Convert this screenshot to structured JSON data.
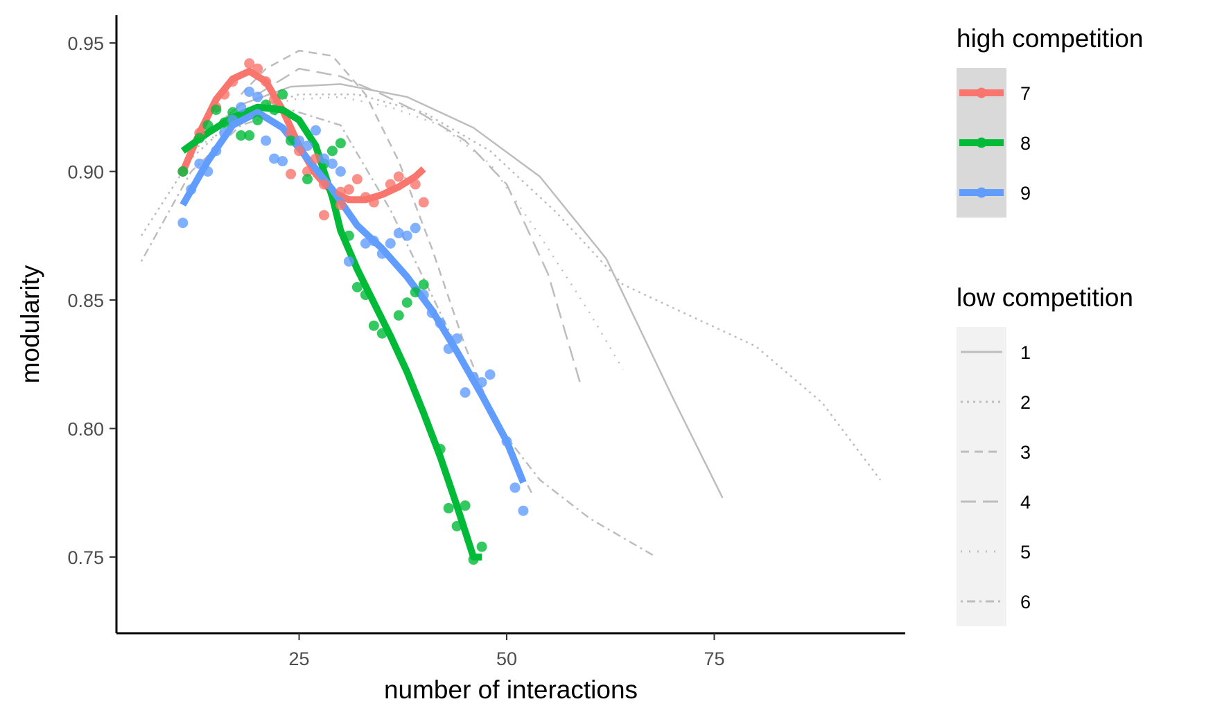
{
  "chart_data": {
    "type": "scatter",
    "xlabel": "number of interactions",
    "ylabel": "modularity",
    "xlim": [
      3,
      98
    ],
    "ylim": [
      0.72,
      0.96
    ],
    "x_ticks": [
      25,
      50,
      75
    ],
    "y_ticks": [
      0.75,
      0.8,
      0.85,
      0.9,
      0.95
    ],
    "x_tick_labels": [
      "25",
      "50",
      "75"
    ],
    "y_tick_labels": [
      "0.75",
      "0.80",
      "0.85",
      "0.90",
      "0.95"
    ],
    "grid": false,
    "legend_position": "right",
    "legends": [
      {
        "title": "high competition",
        "key_background": "#d9d9d9",
        "entries": [
          {
            "label": "7",
            "color": "#f8766d"
          },
          {
            "label": "8",
            "color": "#00ba38"
          },
          {
            "label": "9",
            "color": "#619cff"
          }
        ]
      },
      {
        "title": "low competition",
        "key_background": "#f2f2f2",
        "entries": [
          {
            "label": "1",
            "dash": "solid"
          },
          {
            "label": "2",
            "dash": "dotted"
          },
          {
            "label": "3",
            "dash": "dashed"
          },
          {
            "label": "4",
            "dash": "longdash"
          },
          {
            "label": "5",
            "dash": "dotted-sparse"
          },
          {
            "label": "6",
            "dash": "dotdash"
          }
        ]
      }
    ],
    "series": [
      {
        "name": "7",
        "group": "high competition",
        "color": "#f8766d",
        "points": [
          [
            11,
            0.9
          ],
          [
            13,
            0.915
          ],
          [
            15,
            0.925
          ],
          [
            16,
            0.93
          ],
          [
            17,
            0.935
          ],
          [
            19,
            0.942
          ],
          [
            20,
            0.94
          ],
          [
            21,
            0.935
          ],
          [
            22,
            0.928
          ],
          [
            24,
            0.915
          ],
          [
            25,
            0.908
          ],
          [
            26,
            0.9
          ],
          [
            27,
            0.905
          ],
          [
            28,
            0.895
          ],
          [
            30,
            0.887
          ],
          [
            31,
            0.893
          ],
          [
            32,
            0.897
          ],
          [
            33,
            0.89
          ],
          [
            34,
            0.888
          ],
          [
            36,
            0.895
          ],
          [
            37,
            0.898
          ],
          [
            39,
            0.895
          ],
          [
            40,
            0.888
          ],
          [
            24,
            0.899
          ],
          [
            28,
            0.883
          ],
          [
            30,
            0.892
          ]
        ],
        "fit": [
          [
            11,
            0.9
          ],
          [
            13,
            0.915
          ],
          [
            15,
            0.928
          ],
          [
            17,
            0.936
          ],
          [
            19,
            0.939
          ],
          [
            21,
            0.935
          ],
          [
            23,
            0.924
          ],
          [
            25,
            0.91
          ],
          [
            27,
            0.899
          ],
          [
            29,
            0.892
          ],
          [
            31,
            0.889
          ],
          [
            33,
            0.889
          ],
          [
            35,
            0.891
          ],
          [
            37,
            0.894
          ],
          [
            39,
            0.898
          ],
          [
            40,
            0.901
          ]
        ]
      },
      {
        "name": "8",
        "group": "high competition",
        "color": "#00ba38",
        "points": [
          [
            11,
            0.9
          ],
          [
            13,
            0.913
          ],
          [
            14,
            0.918
          ],
          [
            15,
            0.924
          ],
          [
            16,
            0.919
          ],
          [
            17,
            0.923
          ],
          [
            18,
            0.914
          ],
          [
            19,
            0.914
          ],
          [
            20,
            0.92
          ],
          [
            21,
            0.926
          ],
          [
            22,
            0.924
          ],
          [
            23,
            0.93
          ],
          [
            24,
            0.912
          ],
          [
            26,
            0.897
          ],
          [
            28,
            0.903
          ],
          [
            29,
            0.908
          ],
          [
            30,
            0.911
          ],
          [
            31,
            0.875
          ],
          [
            32,
            0.855
          ],
          [
            33,
            0.852
          ],
          [
            34,
            0.84
          ],
          [
            35,
            0.837
          ],
          [
            37,
            0.844
          ],
          [
            38,
            0.849
          ],
          [
            39,
            0.853
          ],
          [
            40,
            0.856
          ],
          [
            42,
            0.792
          ],
          [
            43,
            0.769
          ],
          [
            44,
            0.762
          ],
          [
            45,
            0.77
          ],
          [
            46,
            0.749
          ],
          [
            47,
            0.754
          ]
        ],
        "fit": [
          [
            11,
            0.908
          ],
          [
            14,
            0.915
          ],
          [
            17,
            0.921
          ],
          [
            20,
            0.925
          ],
          [
            23,
            0.924
          ],
          [
            25,
            0.92
          ],
          [
            27,
            0.91
          ],
          [
            29,
            0.89
          ],
          [
            30,
            0.877
          ],
          [
            32,
            0.862
          ],
          [
            34,
            0.849
          ],
          [
            36,
            0.836
          ],
          [
            38,
            0.822
          ],
          [
            40,
            0.806
          ],
          [
            42,
            0.789
          ],
          [
            44,
            0.77
          ],
          [
            46,
            0.75
          ],
          [
            47,
            0.75
          ]
        ]
      },
      {
        "name": "9",
        "group": "high competition",
        "color": "#619cff",
        "points": [
          [
            11,
            0.88
          ],
          [
            12,
            0.893
          ],
          [
            13,
            0.903
          ],
          [
            14,
            0.9
          ],
          [
            15,
            0.908
          ],
          [
            16,
            0.915
          ],
          [
            17,
            0.92
          ],
          [
            18,
            0.925
          ],
          [
            19,
            0.931
          ],
          [
            20,
            0.929
          ],
          [
            21,
            0.912
          ],
          [
            22,
            0.905
          ],
          [
            23,
            0.904
          ],
          [
            25,
            0.912
          ],
          [
            26,
            0.91
          ],
          [
            27,
            0.916
          ],
          [
            28,
            0.905
          ],
          [
            29,
            0.903
          ],
          [
            30,
            0.9
          ],
          [
            31,
            0.865
          ],
          [
            33,
            0.872
          ],
          [
            34,
            0.873
          ],
          [
            35,
            0.868
          ],
          [
            36,
            0.872
          ],
          [
            37,
            0.876
          ],
          [
            38,
            0.875
          ],
          [
            39,
            0.878
          ],
          [
            40,
            0.852
          ],
          [
            41,
            0.845
          ],
          [
            42,
            0.841
          ],
          [
            43,
            0.831
          ],
          [
            44,
            0.835
          ],
          [
            45,
            0.814
          ],
          [
            46,
            0.82
          ],
          [
            47,
            0.818
          ],
          [
            48,
            0.821
          ],
          [
            50,
            0.795
          ],
          [
            51,
            0.777
          ],
          [
            52,
            0.768
          ]
        ],
        "fit": [
          [
            11,
            0.887
          ],
          [
            14,
            0.904
          ],
          [
            17,
            0.918
          ],
          [
            20,
            0.923
          ],
          [
            23,
            0.917
          ],
          [
            26,
            0.905
          ],
          [
            29,
            0.893
          ],
          [
            32,
            0.879
          ],
          [
            35,
            0.87
          ],
          [
            38,
            0.859
          ],
          [
            41,
            0.846
          ],
          [
            44,
            0.83
          ],
          [
            47,
            0.813
          ],
          [
            50,
            0.795
          ],
          [
            52,
            0.779
          ]
        ]
      }
    ],
    "background_series": [
      {
        "name": "1",
        "group": "low competition",
        "dash": "solid",
        "fit": [
          [
            12,
            0.91
          ],
          [
            18,
            0.926
          ],
          [
            24,
            0.933
          ],
          [
            30,
            0.934
          ],
          [
            38,
            0.929
          ],
          [
            46,
            0.917
          ],
          [
            54,
            0.898
          ],
          [
            62,
            0.866
          ],
          [
            70,
            0.812
          ],
          [
            76,
            0.773
          ]
        ]
      },
      {
        "name": "2",
        "group": "low competition",
        "dash": "dotted",
        "fit": [
          [
            6,
            0.875
          ],
          [
            12,
            0.905
          ],
          [
            18,
            0.923
          ],
          [
            25,
            0.93
          ],
          [
            32,
            0.93
          ],
          [
            40,
            0.923
          ],
          [
            48,
            0.908
          ],
          [
            56,
            0.884
          ],
          [
            64,
            0.856
          ],
          [
            72,
            0.844
          ],
          [
            80,
            0.832
          ],
          [
            88,
            0.81
          ],
          [
            95,
            0.78
          ]
        ]
      },
      {
        "name": "3",
        "group": "low competition",
        "dash": "dashed",
        "fit": [
          [
            18,
            0.93
          ],
          [
            21,
            0.94
          ],
          [
            25,
            0.947
          ],
          [
            29,
            0.945
          ],
          [
            33,
            0.93
          ],
          [
            37,
            0.904
          ],
          [
            41,
            0.87
          ],
          [
            45,
            0.832
          ],
          [
            49,
            0.8
          ],
          [
            53,
            0.775
          ]
        ]
      },
      {
        "name": "4",
        "group": "low competition",
        "dash": "longdash",
        "fit": [
          [
            20,
            0.93
          ],
          [
            25,
            0.94
          ],
          [
            30,
            0.937
          ],
          [
            35,
            0.93
          ],
          [
            40,
            0.922
          ],
          [
            45,
            0.912
          ],
          [
            50,
            0.895
          ],
          [
            55,
            0.86
          ],
          [
            59,
            0.816
          ]
        ]
      },
      {
        "name": "5",
        "group": "low competition",
        "dash": "dotted-sparse",
        "fit": [
          [
            12,
            0.908
          ],
          [
            18,
            0.92
          ],
          [
            24,
            0.928
          ],
          [
            30,
            0.929
          ],
          [
            36,
            0.925
          ],
          [
            42,
            0.918
          ],
          [
            48,
            0.903
          ],
          [
            54,
            0.875
          ],
          [
            60,
            0.845
          ],
          [
            64,
            0.823
          ]
        ]
      },
      {
        "name": "6",
        "group": "low competition",
        "dash": "dotdash",
        "fit": [
          [
            6,
            0.865
          ],
          [
            12,
            0.9
          ],
          [
            18,
            0.918
          ],
          [
            24,
            0.924
          ],
          [
            30,
            0.918
          ],
          [
            36,
            0.885
          ],
          [
            42,
            0.845
          ],
          [
            48,
            0.805
          ],
          [
            54,
            0.78
          ],
          [
            60,
            0.765
          ],
          [
            68,
            0.75
          ]
        ]
      }
    ]
  }
}
